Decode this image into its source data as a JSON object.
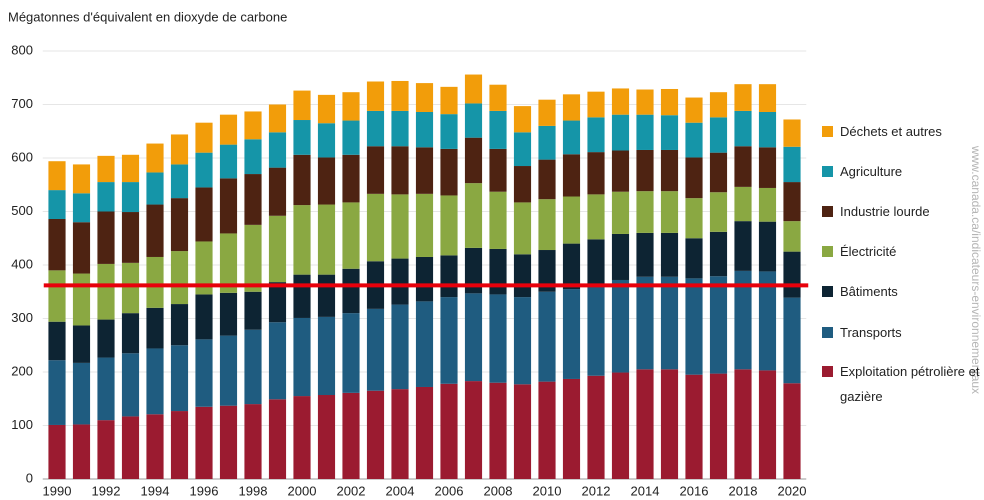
{
  "chart_data": {
    "type": "stacked_bar",
    "title": "Mégatonnes d'équivalent en dioxyde de carbone",
    "source": "www.canada.ca/indicateurs-environnementaux",
    "categories": [
      "1990",
      null,
      "1992",
      null,
      "1994",
      null,
      "1996",
      null,
      "1998",
      null,
      "2000",
      null,
      "2002",
      null,
      "2004",
      null,
      "2006",
      null,
      "2008",
      null,
      "2010",
      null,
      "2012",
      null,
      "2014",
      null,
      "2016",
      null,
      "2018",
      null,
      "2020"
    ],
    "series": [
      {
        "name": "Exploitation pétrolière et gazière",
        "color": "#9b1b30",
        "values": [
          101,
          102,
          110,
          117,
          121,
          127,
          135,
          137,
          140,
          149,
          155,
          157,
          161,
          165,
          168,
          172,
          178,
          183,
          180,
          177,
          182,
          187,
          193,
          199,
          205,
          205,
          195,
          197,
          205,
          203,
          179
        ]
      },
      {
        "name": "Transports",
        "color": "#1f5c80",
        "values": [
          121,
          115,
          117,
          118,
          123,
          123,
          126,
          131,
          139,
          144,
          146,
          146,
          149,
          153,
          158,
          160,
          162,
          164,
          165,
          163,
          168,
          168,
          167,
          173,
          173,
          173,
          180,
          182,
          184,
          185,
          160
        ]
      },
      {
        "name": "Bâtiments",
        "color": "#0d2433",
        "values": [
          72,
          70,
          71,
          75,
          76,
          77,
          84,
          80,
          71,
          75,
          81,
          79,
          83,
          89,
          86,
          83,
          78,
          85,
          85,
          80,
          78,
          85,
          88,
          86,
          82,
          82,
          75,
          83,
          93,
          93,
          86
        ]
      },
      {
        "name": "Électricité",
        "color": "#8aa842",
        "values": [
          96,
          97,
          104,
          94,
          95,
          99,
          99,
          111,
          125,
          124,
          130,
          131,
          124,
          126,
          120,
          118,
          112,
          121,
          107,
          97,
          95,
          88,
          84,
          79,
          78,
          78,
          75,
          74,
          64,
          63,
          57
        ]
      },
      {
        "name": "Industrie lourde",
        "color": "#4e2312",
        "values": [
          96,
          96,
          98,
          95,
          98,
          99,
          101,
          103,
          95,
          90,
          94,
          88,
          89,
          89,
          90,
          87,
          87,
          85,
          80,
          68,
          74,
          79,
          79,
          77,
          77,
          77,
          76,
          74,
          76,
          76,
          73
        ]
      },
      {
        "name": "Agriculture",
        "color": "#1595a8",
        "values": [
          54,
          54,
          55,
          56,
          60,
          63,
          65,
          63,
          65,
          66,
          65,
          64,
          64,
          66,
          66,
          66,
          65,
          64,
          71,
          63,
          63,
          63,
          65,
          67,
          66,
          65,
          65,
          66,
          66,
          66,
          66
        ]
      },
      {
        "name": "Déchets et autres",
        "color": "#f29d0a",
        "values": [
          54,
          54,
          49,
          51,
          54,
          56,
          56,
          56,
          52,
          52,
          55,
          53,
          53,
          55,
          56,
          54,
          51,
          54,
          49,
          49,
          49,
          49,
          48,
          49,
          47,
          49,
          47,
          47,
          50,
          52,
          51
        ]
      }
    ],
    "reference_line": 362,
    "reference_color": "#e8000b",
    "ylim": [
      0,
      800
    ],
    "yticks": [
      0,
      100,
      200,
      300,
      400,
      500,
      600,
      700,
      800
    ],
    "grid": true
  }
}
